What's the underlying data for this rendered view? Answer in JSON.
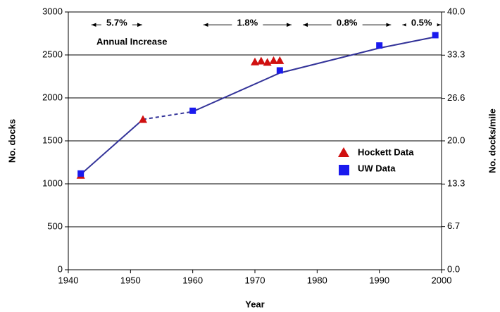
{
  "chart_data": {
    "type": "scatter",
    "x_label": "Year",
    "y_label": "No. docks",
    "y2_label": "No. docks/mile",
    "xlim": [
      1940,
      2000
    ],
    "xticks": [
      1940,
      1950,
      1960,
      1970,
      1980,
      1990,
      2000
    ],
    "ylim": [
      0,
      3000
    ],
    "yticks": [
      0,
      500,
      1000,
      1500,
      2000,
      2500,
      3000
    ],
    "y2lim": [
      0,
      40
    ],
    "y2ticks": [
      {
        "value": 0,
        "label": "0.0"
      },
      {
        "value": 6.7,
        "label": "6.7"
      },
      {
        "value": 13.3,
        "label": "13.3"
      },
      {
        "value": 20,
        "label": "20.0"
      },
      {
        "value": 26.6,
        "label": "26.6"
      },
      {
        "value": 33.3,
        "label": "33.3"
      },
      {
        "value": 40,
        "label": "40.0"
      }
    ],
    "grid": true,
    "series": [
      {
        "name": "Hockett Data",
        "color": "#d01010",
        "marker": "triangle",
        "x": [
          1942,
          1952,
          1970,
          1971,
          1972,
          1973,
          1974
        ],
        "values": [
          1100,
          1750,
          2420,
          2430,
          2415,
          2435,
          2435
        ]
      },
      {
        "name": "UW Data",
        "color": "#1a1aee",
        "marker": "square",
        "x": [
          1942,
          1960,
          1974,
          1990,
          1999
        ],
        "values": [
          1120,
          1850,
          2320,
          2610,
          2730
        ]
      }
    ],
    "trend": {
      "color": "#333399",
      "segments": [
        {
          "style": "solid",
          "x": [
            1942,
            1952
          ],
          "values": [
            1110,
            1750
          ]
        },
        {
          "style": "dashed",
          "x": [
            1952,
            1960
          ],
          "values": [
            1750,
            1840
          ]
        },
        {
          "style": "solid",
          "x": [
            1960,
            1974,
            1990,
            1999
          ],
          "values": [
            1840,
            2290,
            2580,
            2710
          ]
        }
      ]
    },
    "annotation_title": "Annual Increase",
    "annotation_level": 2850,
    "annotations": [
      {
        "text": "5.7%",
        "from": 1942,
        "to": 1952
      },
      {
        "text": "1.8%",
        "from": 1960,
        "to": 1976
      },
      {
        "text": "0.8%",
        "from": 1976,
        "to": 1992
      },
      {
        "text": "0.5%",
        "from": 1992,
        "to": 2000
      }
    ]
  }
}
